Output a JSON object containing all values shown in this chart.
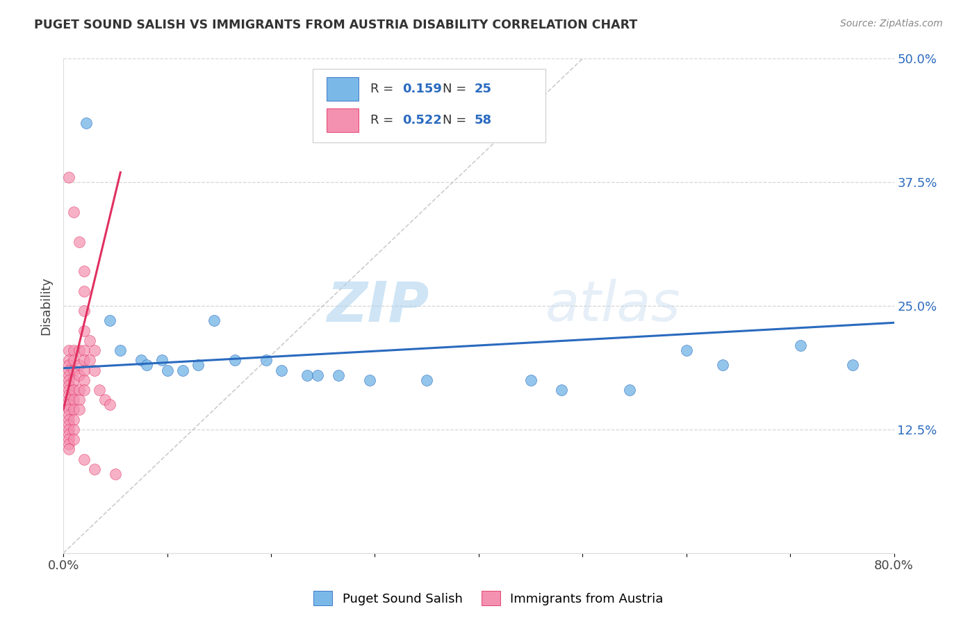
{
  "title": "PUGET SOUND SALISH VS IMMIGRANTS FROM AUSTRIA DISABILITY CORRELATION CHART",
  "source": "Source: ZipAtlas.com",
  "ylabel": "Disability",
  "xlim": [
    0.0,
    0.8
  ],
  "ylim": [
    0.0,
    0.5
  ],
  "R_blue": 0.159,
  "N_blue": 25,
  "R_pink": 0.522,
  "N_pink": 58,
  "color_blue": "#7ab8e8",
  "color_pink": "#f490b0",
  "line_color_blue": "#2a6abf",
  "line_color_pink": "#e03060",
  "blue_line": [
    0.0,
    0.187,
    0.8,
    0.233
  ],
  "pink_line": [
    0.0,
    0.145,
    0.055,
    0.385
  ],
  "diag_line": [
    0.0,
    0.0,
    0.5,
    0.5
  ],
  "scatter_blue": [
    [
      0.022,
      0.435
    ],
    [
      0.045,
      0.235
    ],
    [
      0.055,
      0.205
    ],
    [
      0.075,
      0.195
    ],
    [
      0.08,
      0.19
    ],
    [
      0.095,
      0.195
    ],
    [
      0.1,
      0.185
    ],
    [
      0.115,
      0.185
    ],
    [
      0.13,
      0.19
    ],
    [
      0.145,
      0.235
    ],
    [
      0.165,
      0.195
    ],
    [
      0.195,
      0.195
    ],
    [
      0.21,
      0.185
    ],
    [
      0.235,
      0.18
    ],
    [
      0.245,
      0.18
    ],
    [
      0.265,
      0.18
    ],
    [
      0.295,
      0.175
    ],
    [
      0.35,
      0.175
    ],
    [
      0.45,
      0.175
    ],
    [
      0.48,
      0.165
    ],
    [
      0.545,
      0.165
    ],
    [
      0.6,
      0.205
    ],
    [
      0.635,
      0.19
    ],
    [
      0.71,
      0.21
    ],
    [
      0.76,
      0.19
    ]
  ],
  "scatter_pink": [
    [
      0.005,
      0.205
    ],
    [
      0.005,
      0.195
    ],
    [
      0.005,
      0.19
    ],
    [
      0.005,
      0.185
    ],
    [
      0.005,
      0.18
    ],
    [
      0.005,
      0.175
    ],
    [
      0.005,
      0.17
    ],
    [
      0.005,
      0.165
    ],
    [
      0.005,
      0.16
    ],
    [
      0.005,
      0.155
    ],
    [
      0.005,
      0.15
    ],
    [
      0.005,
      0.145
    ],
    [
      0.005,
      0.14
    ],
    [
      0.005,
      0.135
    ],
    [
      0.005,
      0.13
    ],
    [
      0.005,
      0.125
    ],
    [
      0.005,
      0.12
    ],
    [
      0.005,
      0.115
    ],
    [
      0.005,
      0.11
    ],
    [
      0.005,
      0.105
    ],
    [
      0.01,
      0.205
    ],
    [
      0.01,
      0.195
    ],
    [
      0.01,
      0.185
    ],
    [
      0.01,
      0.175
    ],
    [
      0.01,
      0.165
    ],
    [
      0.01,
      0.155
    ],
    [
      0.01,
      0.145
    ],
    [
      0.01,
      0.135
    ],
    [
      0.01,
      0.125
    ],
    [
      0.01,
      0.115
    ],
    [
      0.015,
      0.205
    ],
    [
      0.015,
      0.19
    ],
    [
      0.015,
      0.18
    ],
    [
      0.015,
      0.165
    ],
    [
      0.015,
      0.155
    ],
    [
      0.015,
      0.145
    ],
    [
      0.02,
      0.285
    ],
    [
      0.02,
      0.265
    ],
    [
      0.02,
      0.245
    ],
    [
      0.02,
      0.225
    ],
    [
      0.02,
      0.205
    ],
    [
      0.02,
      0.195
    ],
    [
      0.02,
      0.185
    ],
    [
      0.02,
      0.175
    ],
    [
      0.02,
      0.165
    ],
    [
      0.025,
      0.215
    ],
    [
      0.025,
      0.195
    ],
    [
      0.03,
      0.205
    ],
    [
      0.03,
      0.185
    ],
    [
      0.035,
      0.165
    ],
    [
      0.04,
      0.155
    ],
    [
      0.045,
      0.15
    ],
    [
      0.005,
      0.38
    ],
    [
      0.01,
      0.345
    ],
    [
      0.015,
      0.315
    ],
    [
      0.02,
      0.095
    ],
    [
      0.03,
      0.085
    ],
    [
      0.05,
      0.08
    ]
  ],
  "watermark_zip": "ZIP",
  "watermark_atlas": "atlas",
  "grid_color": "#cccccc",
  "background_color": "#ffffff",
  "legend_label_blue": "Puget Sound Salish",
  "legend_label_pink": "Immigrants from Austria"
}
